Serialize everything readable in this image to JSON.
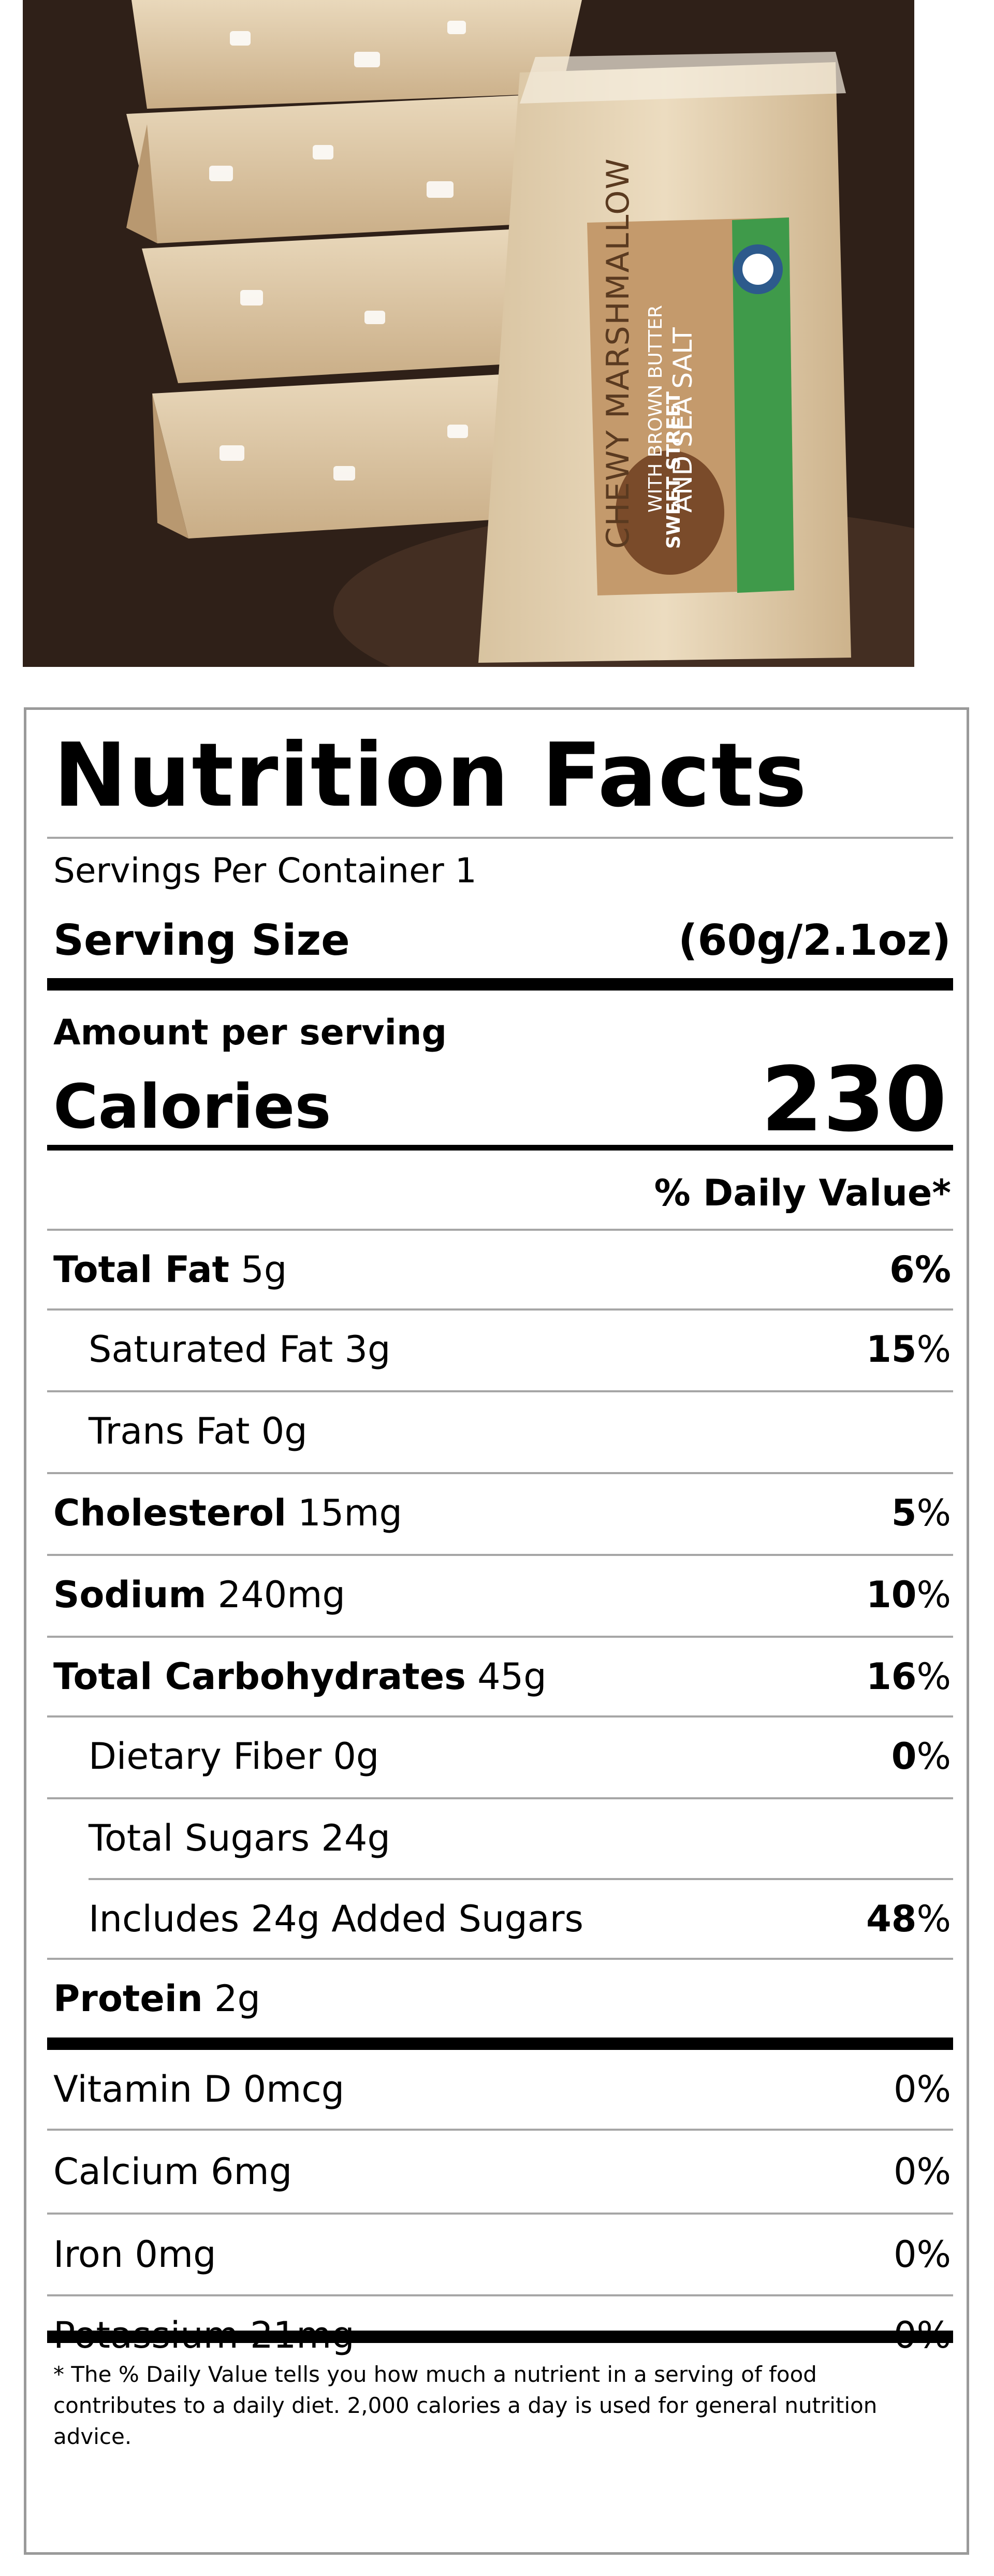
{
  "panel": {
    "title": "Nutrition Facts",
    "servings_per_container": "Servings Per Container 1",
    "serving_size_label": "Serving Size",
    "serving_size_value": "(60g/2.1oz)",
    "amount_per_serving": "Amount per serving",
    "calories_label": "Calories",
    "calories_value": "230",
    "daily_value_header": "% Daily Value*"
  },
  "nutrients": [
    {
      "name": "Total Fat",
      "amount": "5g",
      "dv_bold": "6",
      "dv_suffix": "%"
    },
    {
      "name": "Saturated Fat",
      "amount": "3g",
      "dv_bold": "15",
      "dv_suffix": "%"
    },
    {
      "name": "Trans Fat",
      "amount": "0g",
      "dv_bold": "",
      "dv_suffix": ""
    },
    {
      "name": "Cholesterol",
      "amount": "15mg",
      "dv_bold": "5",
      "dv_suffix": "%"
    },
    {
      "name": "Sodium",
      "amount": "240mg",
      "dv_bold": "10",
      "dv_suffix": "%"
    },
    {
      "name": "Total Carbohydrates",
      "amount": "45g",
      "dv_bold": "16",
      "dv_suffix": "%"
    },
    {
      "name": "Dietary Fiber",
      "amount": "0g",
      "dv_bold": "0",
      "dv_suffix": "%"
    },
    {
      "name": "Total Sugars",
      "amount": "24g",
      "dv_bold": "",
      "dv_suffix": ""
    },
    {
      "name": "Includes 24g Added Sugars",
      "amount": "",
      "dv_bold": "48",
      "dv_suffix": "%"
    },
    {
      "name": "Protein",
      "amount": "2g",
      "dv_bold": "",
      "dv_suffix": ""
    }
  ],
  "vitamins": [
    {
      "name": "Vitamin D",
      "amount": "0mcg",
      "dv": "0%"
    },
    {
      "name": "Calcium",
      "amount": "6mg",
      "dv": "0%"
    },
    {
      "name": "Iron",
      "amount": "0mg",
      "dv": "0%"
    },
    {
      "name": "Potassium",
      "amount": "21mg",
      "dv": "0%"
    }
  ],
  "footnote": "* The % Daily Value tells you how much a nutrient in a serving of food contributes to a daily diet. 2,000 calories a day is used for general nutrition advice.",
  "product": {
    "name_line1": "CHEWY MARSHMALLOW",
    "name_line2": "WITH BROWN BUTTER",
    "name_line3": "AND SEA SALT",
    "brand": "SWEET STREET",
    "colors": {
      "wrapper_green": "#3f9a4a",
      "label_kraft": "#c49a6c",
      "badge_blue": "#2d5a8c"
    }
  }
}
